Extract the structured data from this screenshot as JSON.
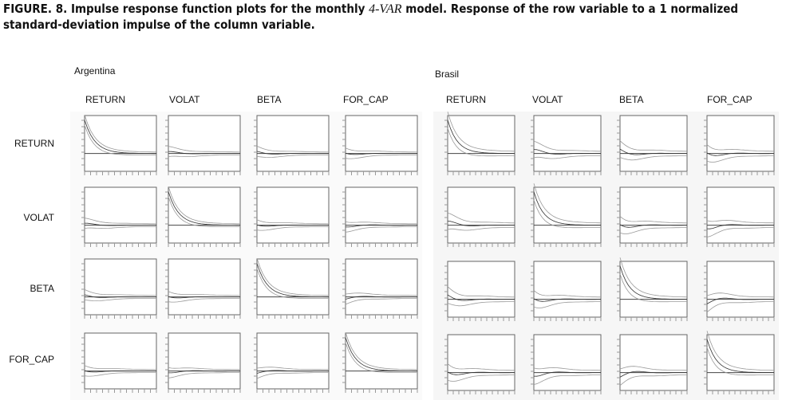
{
  "caption": {
    "label": "FIGURE. 8.",
    "text_before": "Impulse response function plots for the  monthly",
    "model": "4-VAR",
    "text_after": "model. Response of the row variable to a 1 normalized",
    "line2": "standard-deviation impulse of the column variable."
  },
  "panels": [
    {
      "title": "Argentina",
      "columns": [
        "RETURN",
        "VOLAT",
        "BETA",
        "FOR_CAP"
      ]
    },
    {
      "title": "Brasil",
      "columns": [
        "RETURN",
        "VOLAT",
        "BETA",
        "FOR_CAP"
      ]
    }
  ],
  "rows": [
    "RETURN",
    "VOLAT",
    "BETA",
    "FOR_CAP"
  ]
}
